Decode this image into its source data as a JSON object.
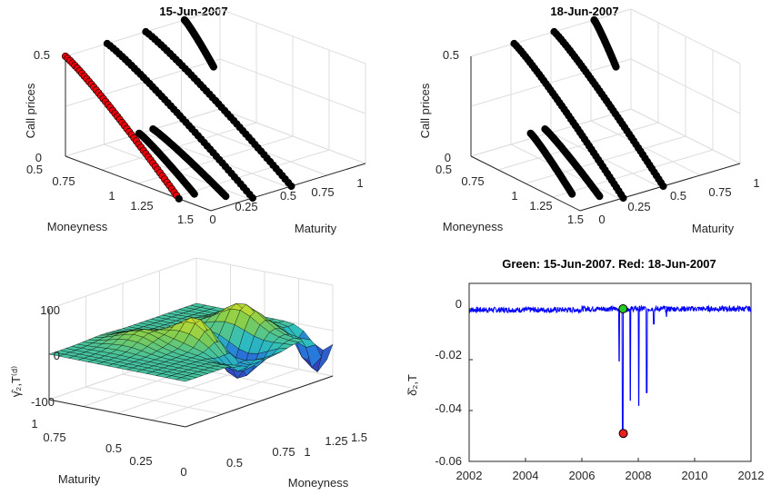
{
  "panels": {
    "p1": {
      "title": "15-Jun-2007",
      "zlabel": "Call prices",
      "xlabel": "Moneyness",
      "ylabel": "Maturity",
      "zticks": [
        "0",
        "0.5"
      ],
      "mticks": [
        "0.5",
        "0.75",
        "1",
        "1.25",
        "1.5"
      ],
      "tticks": [
        "0",
        "0.25",
        "0.5",
        "0.75",
        "1"
      ]
    },
    "p2": {
      "title": "18-Jun-2007",
      "zlabel": "Call prices",
      "xlabel": "Moneyness",
      "ylabel": "Maturity",
      "zticks": [
        "0",
        "0.5"
      ],
      "mticks": [
        "0.5",
        "0.75",
        "1",
        "1.25",
        "1.5"
      ],
      "tticks": [
        "0",
        "0.25",
        "0.5",
        "0.75",
        "1"
      ]
    },
    "p3": {
      "zlabel": "γ̂₂,T⁽ᵈ⁾",
      "xlabel": "Maturity",
      "ylabel": "Moneyness",
      "zticks": [
        "-100",
        "0",
        "100"
      ],
      "tticks": [
        "0",
        "0.25",
        "0.5",
        "0.75",
        "1"
      ],
      "mticks": [
        "0.5",
        "0.75",
        "1",
        "1.25",
        "1.5"
      ]
    },
    "p4": {
      "title": "Green: 15-Jun-2007. Red: 18-Jun-2007",
      "ylabel": "δ̂₂,T",
      "yticks": [
        "-0.06",
        "-0.04",
        "-0.02",
        "0"
      ],
      "xticks": [
        "2002",
        "2004",
        "2006",
        "2008",
        "2010",
        "2012"
      ]
    }
  },
  "colors": {
    "scatter": "#000000",
    "highlight": "#e8000b",
    "line": "#0000ff",
    "green": "#22cc22",
    "red": "#e82020"
  },
  "chart_data": [
    {
      "type": "scatter",
      "title": "15-Jun-2007",
      "xlabel": "Moneyness",
      "ylabel": "Maturity",
      "zlabel": "Call prices",
      "xlim": [
        0.5,
        1.5
      ],
      "ylim": [
        0,
        1
      ],
      "zlim": [
        0,
        0.5
      ],
      "series": [
        {
          "maturity": 0.0,
          "moneyness": [
            0.5,
            1.28
          ],
          "price": [
            0.5,
            0.0
          ],
          "highlight": true
        },
        {
          "maturity": 0.1,
          "moneyness": [
            0.9,
            1.28
          ],
          "price": [
            0.2,
            0.0
          ]
        },
        {
          "maturity": 0.19,
          "moneyness": [
            0.9,
            1.4
          ],
          "price": [
            0.2,
            0.0
          ]
        },
        {
          "maturity": 0.27,
          "moneyness": [
            0.5,
            1.5
          ],
          "price": [
            0.5,
            0.0
          ]
        },
        {
          "maturity": 0.52,
          "moneyness": [
            0.5,
            1.5
          ],
          "price": [
            0.5,
            0.0
          ]
        },
        {
          "maturity": 0.77,
          "moneyness": [
            0.5,
            0.7
          ],
          "price": [
            0.5,
            0.32
          ]
        }
      ]
    },
    {
      "type": "scatter",
      "title": "18-Jun-2007",
      "xlabel": "Moneyness",
      "ylabel": "Maturity",
      "zlabel": "Call prices",
      "xlim": [
        0.5,
        1.5
      ],
      "ylim": [
        0,
        1
      ],
      "zlim": [
        0,
        0.5
      ],
      "series": [
        {
          "maturity": 0.1,
          "moneyness": [
            0.9,
            1.28
          ],
          "price": [
            0.2,
            0.0
          ]
        },
        {
          "maturity": 0.19,
          "moneyness": [
            0.9,
            1.4
          ],
          "price": [
            0.2,
            0.0
          ]
        },
        {
          "maturity": 0.27,
          "moneyness": [
            0.5,
            1.5
          ],
          "price": [
            0.5,
            0.0
          ]
        },
        {
          "maturity": 0.52,
          "moneyness": [
            0.5,
            1.5
          ],
          "price": [
            0.5,
            0.0
          ]
        },
        {
          "maturity": 0.77,
          "moneyness": [
            0.5,
            0.7
          ],
          "price": [
            0.5,
            0.32
          ]
        }
      ]
    },
    {
      "type": "surface",
      "xlabel": "Maturity",
      "ylabel": "Moneyness",
      "zlabel": "γ̂₂,T⁽ᵈ⁾",
      "xlim": [
        0,
        1
      ],
      "ylim": [
        0.5,
        1.5
      ],
      "zlim": [
        -110,
        100
      ]
    },
    {
      "type": "line",
      "title": "Green: 15-Jun-2007. Red: 18-Jun-2007",
      "ylabel": "δ̂₂,T",
      "xlim": [
        2002,
        2012
      ],
      "ylim": [
        -0.06,
        0.01
      ],
      "series": [
        {
          "x": [
            2002,
            2006.9,
            2007.3,
            2007.45,
            2007.6,
            2008.0,
            2008.3,
            2009,
            2010,
            2011,
            2012
          ],
          "y": [
            0.0,
            0.0,
            -0.0205,
            -0.049,
            -0.036,
            -0.038,
            -0.033,
            -0.003,
            0.0,
            0.0,
            0.0
          ]
        }
      ],
      "markers": [
        {
          "x": 2007.46,
          "y": 0.0,
          "color": "green"
        },
        {
          "x": 2007.47,
          "y": -0.049,
          "color": "red"
        }
      ]
    }
  ]
}
